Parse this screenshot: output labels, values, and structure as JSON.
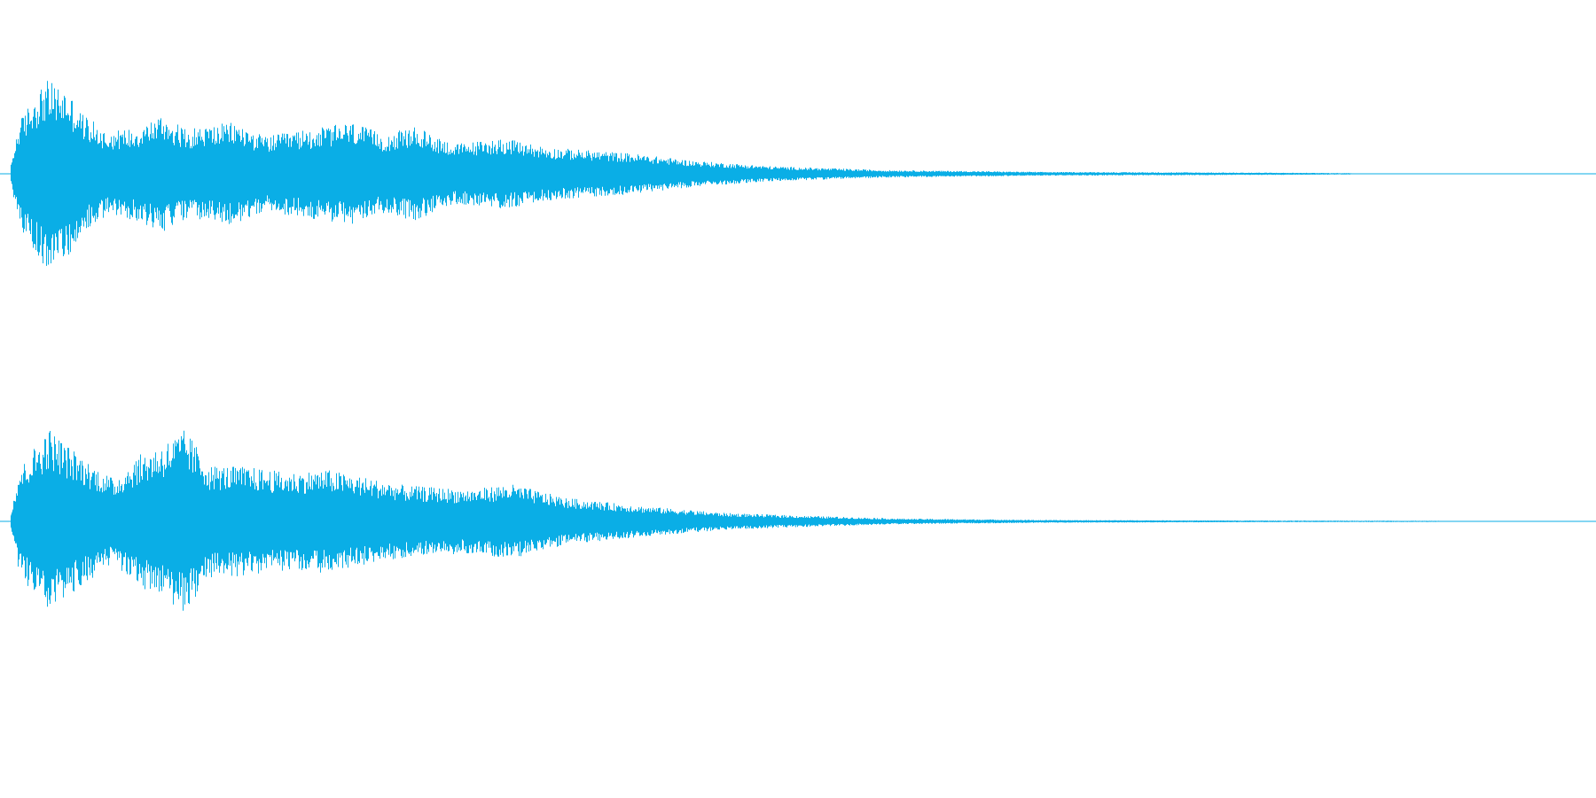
{
  "colors": {
    "background": "#ffffff",
    "waveform": "#0aaee6"
  },
  "chart_data": {
    "type": "waveform",
    "title": "",
    "xlabel": "",
    "ylabel": "",
    "grid": false,
    "legend": "none",
    "x_range": [
      0,
      1
    ],
    "y_range": [
      -1,
      1
    ],
    "channels": [
      {
        "id": "channel-1",
        "envelope": [
          {
            "x": 0.0,
            "amp": 0.1
          },
          {
            "x": 0.005,
            "amp": 0.55
          },
          {
            "x": 0.015,
            "amp": 0.85
          },
          {
            "x": 0.022,
            "amp": 1.0
          },
          {
            "x": 0.035,
            "amp": 0.9
          },
          {
            "x": 0.045,
            "amp": 0.65
          },
          {
            "x": 0.06,
            "amp": 0.45
          },
          {
            "x": 0.08,
            "amp": 0.5
          },
          {
            "x": 0.095,
            "amp": 0.63
          },
          {
            "x": 0.11,
            "amp": 0.48
          },
          {
            "x": 0.14,
            "amp": 0.55
          },
          {
            "x": 0.16,
            "amp": 0.4
          },
          {
            "x": 0.19,
            "amp": 0.48
          },
          {
            "x": 0.215,
            "amp": 0.55
          },
          {
            "x": 0.235,
            "amp": 0.42
          },
          {
            "x": 0.255,
            "amp": 0.5
          },
          {
            "x": 0.28,
            "amp": 0.32
          },
          {
            "x": 0.31,
            "amp": 0.38
          },
          {
            "x": 0.34,
            "amp": 0.28
          },
          {
            "x": 0.39,
            "amp": 0.22
          },
          {
            "x": 0.43,
            "amp": 0.14
          },
          {
            "x": 0.48,
            "amp": 0.08
          },
          {
            "x": 0.55,
            "amp": 0.04
          },
          {
            "x": 0.65,
            "amp": 0.02
          },
          {
            "x": 0.75,
            "amp": 0.015
          },
          {
            "x": 0.845,
            "amp": 0.008
          },
          {
            "x": 0.85,
            "amp": 0.0
          },
          {
            "x": 1.0,
            "amp": 0.0
          }
        ]
      },
      {
        "id": "channel-2",
        "envelope": [
          {
            "x": 0.0,
            "amp": 0.1
          },
          {
            "x": 0.005,
            "amp": 0.55
          },
          {
            "x": 0.015,
            "amp": 0.8
          },
          {
            "x": 0.024,
            "amp": 1.0
          },
          {
            "x": 0.035,
            "amp": 0.82
          },
          {
            "x": 0.05,
            "amp": 0.62
          },
          {
            "x": 0.065,
            "amp": 0.45
          },
          {
            "x": 0.08,
            "amp": 0.7
          },
          {
            "x": 0.095,
            "amp": 0.82
          },
          {
            "x": 0.11,
            "amp": 0.98
          },
          {
            "x": 0.125,
            "amp": 0.6
          },
          {
            "x": 0.15,
            "amp": 0.58
          },
          {
            "x": 0.175,
            "amp": 0.52
          },
          {
            "x": 0.2,
            "amp": 0.55
          },
          {
            "x": 0.22,
            "amp": 0.48
          },
          {
            "x": 0.25,
            "amp": 0.38
          },
          {
            "x": 0.29,
            "amp": 0.34
          },
          {
            "x": 0.315,
            "amp": 0.4
          },
          {
            "x": 0.35,
            "amp": 0.25
          },
          {
            "x": 0.4,
            "amp": 0.16
          },
          {
            "x": 0.45,
            "amp": 0.09
          },
          {
            "x": 0.5,
            "amp": 0.06
          },
          {
            "x": 0.56,
            "amp": 0.03
          },
          {
            "x": 0.65,
            "amp": 0.015
          },
          {
            "x": 0.75,
            "amp": 0.01
          },
          {
            "x": 0.9,
            "amp": 0.006
          },
          {
            "x": 0.905,
            "amp": 0.0
          },
          {
            "x": 1.0,
            "amp": 0.0
          }
        ]
      }
    ]
  }
}
